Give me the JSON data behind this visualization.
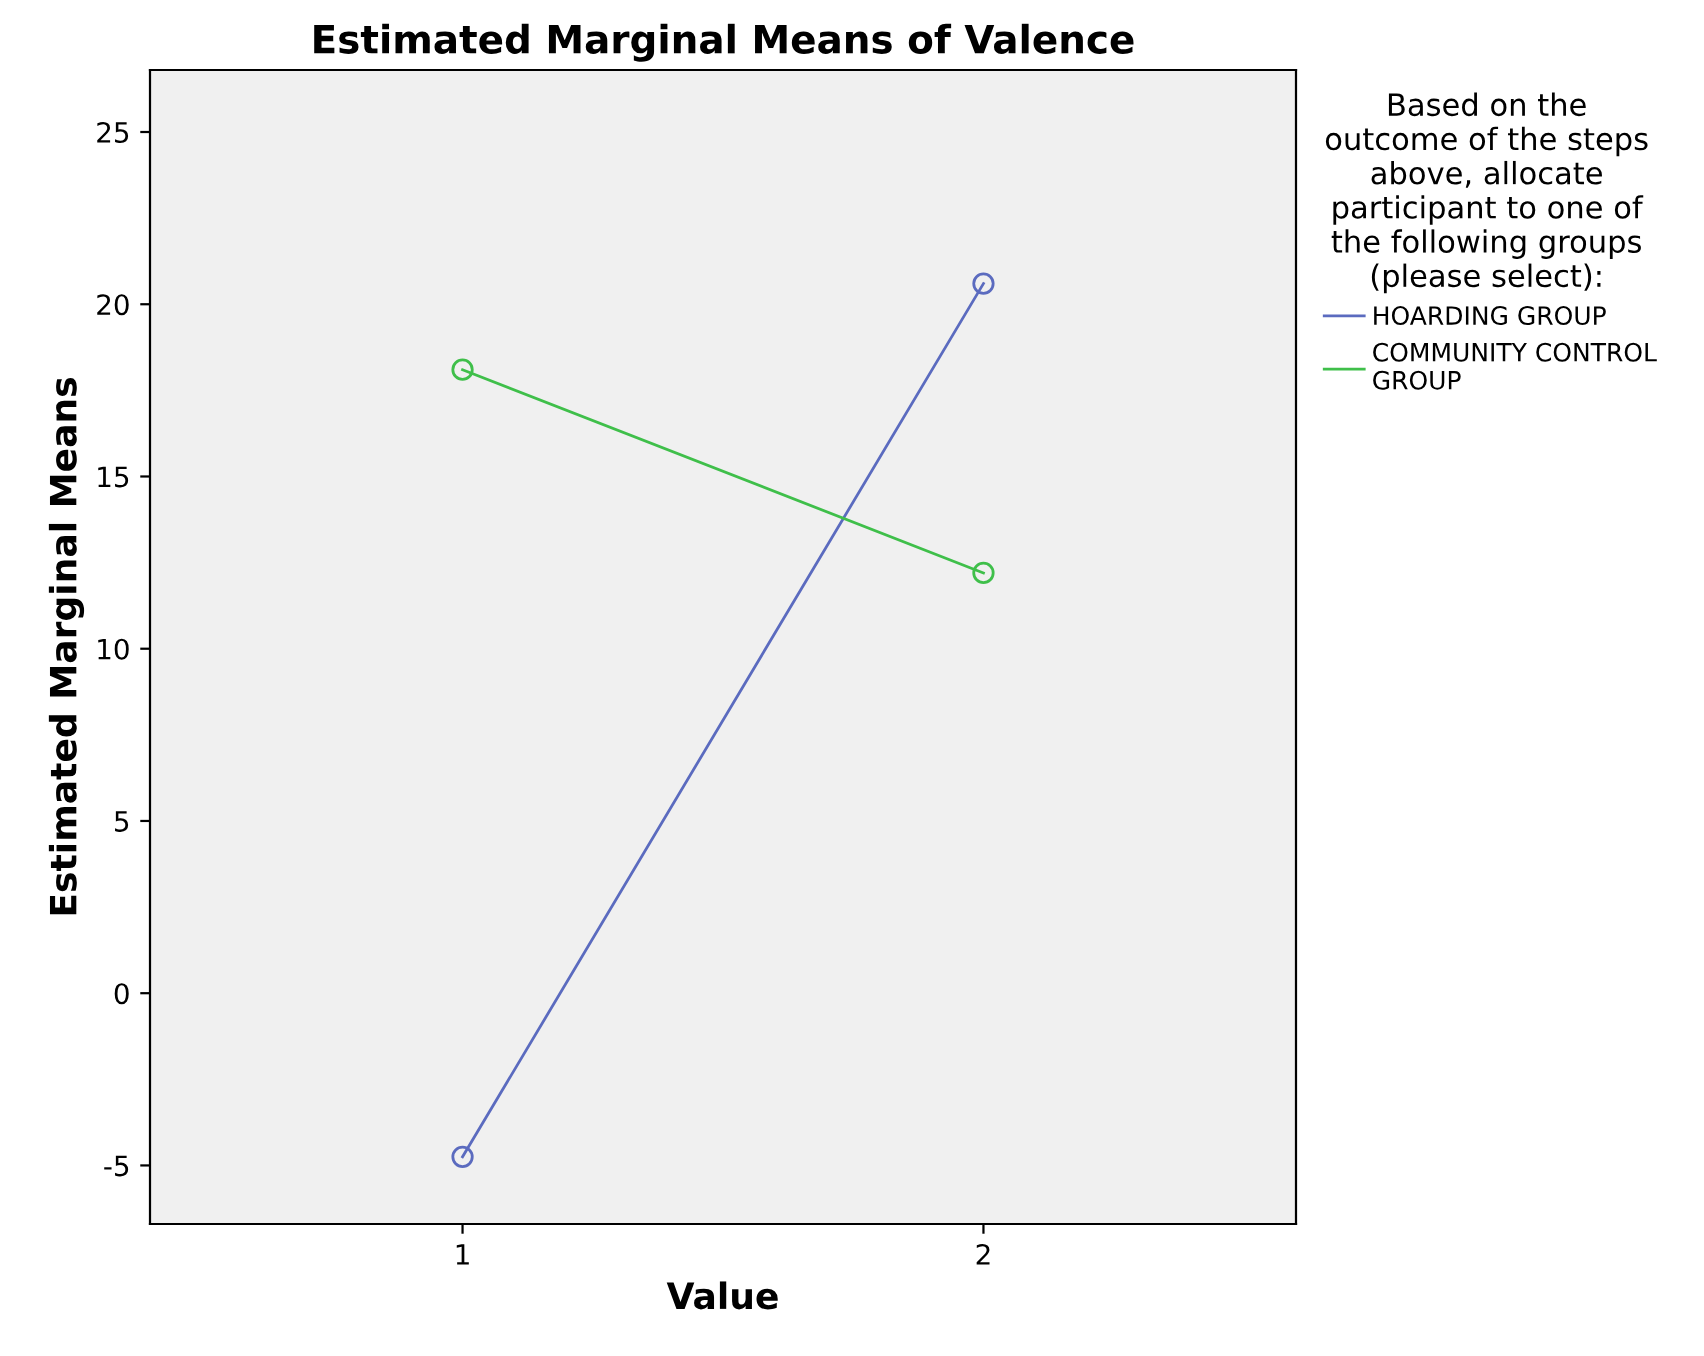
{
  "chart_data": {
    "type": "line",
    "title": "Estimated Marginal Means of Valence",
    "xlabel": "Value",
    "ylabel": "Estimated Marginal Means",
    "legend_title": "Based on the\noutcome of the steps\nabove, allocate\nparticipant to one of\nthe following groups\n(please select):",
    "categories": [
      "1",
      "2"
    ],
    "series": [
      {
        "name": "HOARDING GROUP",
        "color": "#5b6bbf",
        "values": [
          -4.75,
          20.6
        ]
      },
      {
        "name": "COMMUNITY CONTROL\nGROUP",
        "color": "#3fbf4a",
        "values": [
          18.1,
          12.2
        ]
      }
    ],
    "ylim": [
      -6.7,
      26.8
    ],
    "yticks": [
      -5,
      0,
      5,
      10,
      15,
      20,
      25
    ],
    "grid": false,
    "legend": "right",
    "marker": "circle",
    "line_style": "solid"
  }
}
